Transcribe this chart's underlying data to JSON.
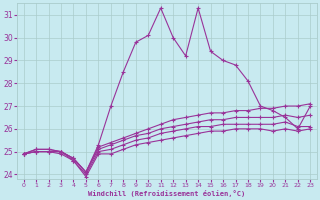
{
  "xlabel": "Windchill (Refroidissement éolien,°C)",
  "bg_color": "#c8eaf0",
  "line_color": "#993399",
  "grid_color": "#aacccc",
  "xlim": [
    -0.5,
    23.5
  ],
  "ylim": [
    23.8,
    31.5
  ],
  "xticks": [
    0,
    1,
    2,
    3,
    4,
    5,
    6,
    7,
    8,
    9,
    10,
    11,
    12,
    13,
    14,
    15,
    16,
    17,
    18,
    19,
    20,
    21,
    22,
    23
  ],
  "yticks": [
    24,
    25,
    26,
    27,
    28,
    29,
    30,
    31
  ],
  "series": [
    [
      24.9,
      25.1,
      25.1,
      25.0,
      24.7,
      24.1,
      25.3,
      27.0,
      28.5,
      29.8,
      30.1,
      31.3,
      30.0,
      29.2,
      31.3,
      29.4,
      29.0,
      28.8,
      28.1,
      27.0,
      26.8,
      26.5,
      26.0,
      27.0
    ],
    [
      24.9,
      25.1,
      25.1,
      25.0,
      24.7,
      24.1,
      25.2,
      25.4,
      25.6,
      25.8,
      26.0,
      26.2,
      26.4,
      26.5,
      26.6,
      26.7,
      26.7,
      26.8,
      26.8,
      26.9,
      26.9,
      27.0,
      27.0,
      27.1
    ],
    [
      24.9,
      25.0,
      25.0,
      25.0,
      24.7,
      24.1,
      25.1,
      25.3,
      25.5,
      25.7,
      25.8,
      26.0,
      26.1,
      26.2,
      26.3,
      26.4,
      26.4,
      26.5,
      26.5,
      26.5,
      26.5,
      26.6,
      26.5,
      26.6
    ],
    [
      24.9,
      25.0,
      25.0,
      25.0,
      24.6,
      24.0,
      25.0,
      25.1,
      25.3,
      25.5,
      25.6,
      25.8,
      25.9,
      26.0,
      26.1,
      26.1,
      26.2,
      26.2,
      26.2,
      26.2,
      26.2,
      26.3,
      26.1,
      26.1
    ],
    [
      24.9,
      25.0,
      25.0,
      24.9,
      24.6,
      23.9,
      24.9,
      24.9,
      25.1,
      25.3,
      25.4,
      25.5,
      25.6,
      25.7,
      25.8,
      25.9,
      25.9,
      26.0,
      26.0,
      26.0,
      25.9,
      26.0,
      25.9,
      26.0
    ]
  ]
}
